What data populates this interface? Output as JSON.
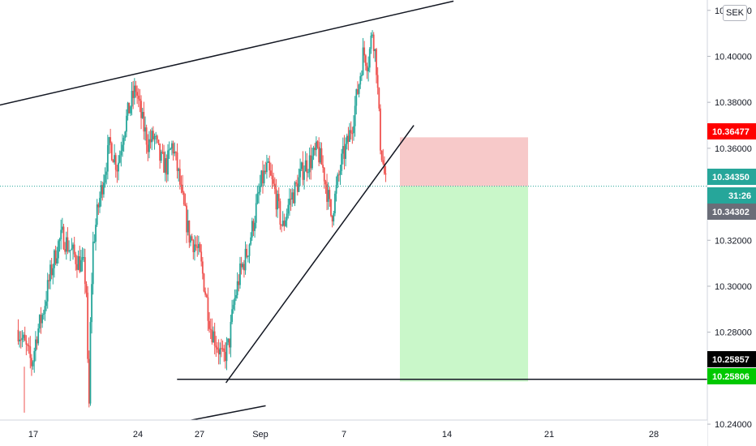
{
  "currency": "SEK",
  "colors": {
    "up": "#26a69a",
    "down": "#ef5350",
    "stop_zone": "#f7c9c9",
    "target_zone": "#c9f7c9",
    "red_badge": "#ff0000",
    "green_badge": "#00c800",
    "teal_badge": "#26a69a",
    "gray_badge": "#6a6d78",
    "drawing": "#131722"
  },
  "price_badges": [
    {
      "label": "10.36477",
      "color": "red",
      "value": 10.36477
    },
    {
      "label": "10.34350",
      "color": "teal",
      "value": 10.3435
    },
    {
      "label": "31:26",
      "color": "teal_countdown",
      "value": 10.3414
    },
    {
      "label": "10.34302",
      "color": "gray",
      "value": 10.34302
    },
    {
      "label": "10.25857",
      "color": "black",
      "value": 10.25857
    },
    {
      "label": "10.25806",
      "color": "green",
      "value": 10.25806
    }
  ],
  "chart_data": {
    "type": "candlestick",
    "y_axis": {
      "ticks": [
        "10.24000",
        "10.26000",
        "10.28000",
        "10.30000",
        "10.32000",
        "10.34000",
        "10.36000",
        "10.38000",
        "10.40000",
        "10.42000"
      ],
      "range": [
        10.2305,
        10.4245
      ]
    },
    "x_axis": {
      "ticks": [
        "17",
        "24",
        "27",
        "Sep",
        "7",
        "14",
        "21",
        "28"
      ]
    },
    "price_path": [
      [
        16.0,
        10.281
      ],
      [
        16.4,
        10.275
      ],
      [
        16.9,
        10.266
      ],
      [
        17.2,
        10.279
      ],
      [
        17.6,
        10.288
      ],
      [
        18.1,
        10.305
      ],
      [
        18.6,
        10.318
      ],
      [
        18.9,
        10.322
      ],
      [
        19.3,
        10.317
      ],
      [
        19.8,
        10.312
      ],
      [
        20.3,
        10.308
      ],
      [
        20.5,
        10.296
      ],
      [
        20.6,
        10.233
      ],
      [
        20.75,
        10.292
      ],
      [
        20.9,
        10.318
      ],
      [
        21.2,
        10.333
      ],
      [
        21.6,
        10.348
      ],
      [
        22.0,
        10.362
      ],
      [
        22.5,
        10.352
      ],
      [
        22.9,
        10.368
      ],
      [
        23.3,
        10.378
      ],
      [
        23.7,
        10.386
      ],
      [
        24.1,
        10.372
      ],
      [
        24.5,
        10.362
      ],
      [
        24.9,
        10.365
      ],
      [
        25.3,
        10.355
      ],
      [
        25.7,
        10.352
      ],
      [
        26.1,
        10.362
      ],
      [
        26.5,
        10.348
      ],
      [
        26.8,
        10.335
      ],
      [
        27.2,
        10.322
      ],
      [
        27.6,
        10.318
      ],
      [
        27.9,
        10.312
      ],
      [
        28.2,
        10.3
      ],
      [
        28.6,
        10.282
      ],
      [
        29.0,
        10.275
      ],
      [
        29.4,
        10.268
      ],
      [
        29.8,
        10.275
      ],
      [
        30.1,
        10.292
      ],
      [
        30.5,
        10.305
      ],
      [
        31.0,
        10.315
      ],
      [
        31.5,
        10.331
      ],
      [
        31.9,
        10.345
      ],
      [
        32.3,
        10.351
      ],
      [
        32.8,
        10.341
      ],
      [
        33.3,
        10.325
      ],
      [
        33.7,
        10.336
      ],
      [
        34.2,
        10.343
      ],
      [
        34.7,
        10.352
      ],
      [
        35.2,
        10.355
      ],
      [
        35.6,
        10.359
      ],
      [
        36.0,
        10.35
      ],
      [
        36.5,
        10.33
      ],
      [
        36.8,
        10.341
      ],
      [
        37.2,
        10.355
      ],
      [
        37.6,
        10.363
      ],
      [
        37.9,
        10.372
      ],
      [
        38.3,
        10.388
      ],
      [
        38.6,
        10.402
      ],
      [
        38.9,
        10.397
      ],
      [
        39.2,
        10.412
      ],
      [
        39.45,
        10.396
      ],
      [
        39.7,
        10.363
      ],
      [
        39.95,
        10.35
      ],
      [
        40.1,
        10.343
      ]
    ],
    "bottom_wicks": [
      [
        20.6,
        10.233
      ],
      [
        16.4,
        10.245
      ]
    ],
    "drawings": {
      "upper_channel_line": {
        "from": [
          9.0,
          10.37
        ],
        "to": [
          44.5,
          10.424
        ]
      },
      "lower_channel_line": {
        "from": [
          19.7,
          10.232
        ],
        "to": [
          32.2,
          10.248
        ]
      },
      "rising_trendline": {
        "from": [
          29.6,
          10.258
        ],
        "to": [
          41.9,
          10.37
        ]
      },
      "horizontal_support": {
        "from": [
          26.4,
          10.2595
        ],
        "to": [
          48.0,
          10.2595
        ]
      },
      "current_price_line": 10.3435
    },
    "position": {
      "entry": 10.3435,
      "stop": 10.36477,
      "target": 10.25857,
      "from_x": 40.3,
      "to_x": 42.1
    }
  }
}
